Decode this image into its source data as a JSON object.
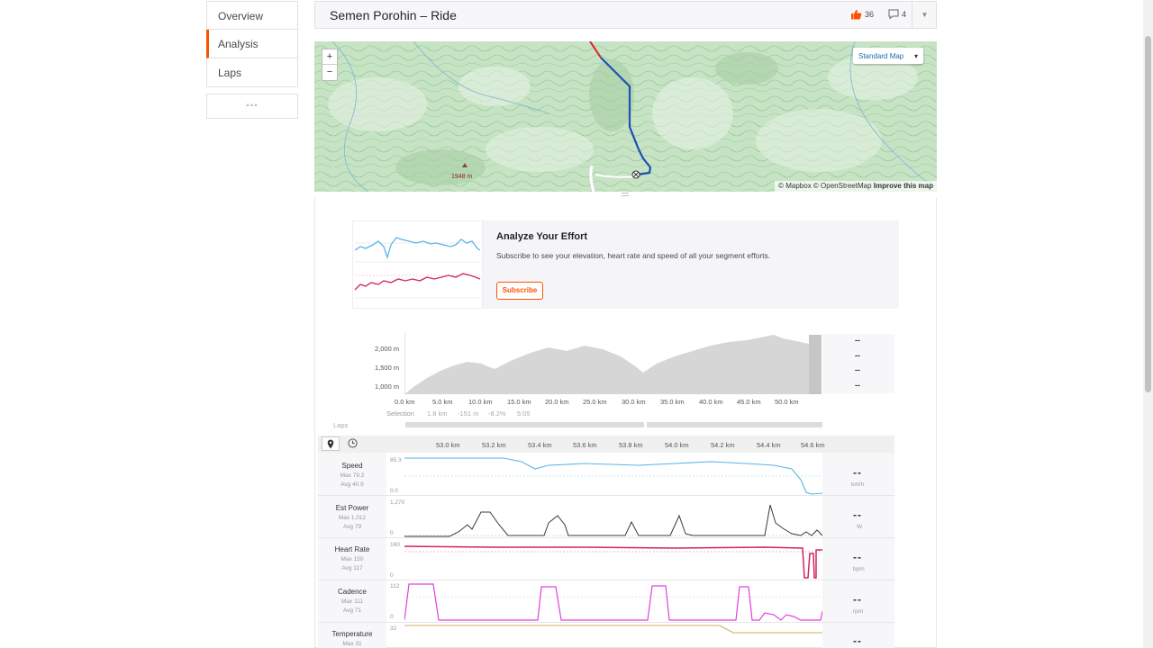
{
  "sidebar": {
    "items": [
      {
        "label": "Overview"
      },
      {
        "label": "Analysis"
      },
      {
        "label": "Laps"
      }
    ],
    "more_label": "◦◦◦"
  },
  "header": {
    "title": "Semen Porohin – Ride",
    "kudos_count": "36",
    "comment_count": "4"
  },
  "map": {
    "zoom_in": "+",
    "zoom_out": "−",
    "style_selector": "Standard Map",
    "attribution_1": "© Mapbox © OpenStreetMap ",
    "attribution_2": "Improve this map",
    "peak_label": "1948 m"
  },
  "upsell": {
    "title": "Analyze Your Effort",
    "text": "Subscribe to see your elevation, heart rate and speed of all your segment efforts.",
    "button": "Subscribe"
  },
  "elevation": {
    "y_ticks": [
      "2,000 m",
      "1,500 m",
      "1,000 m"
    ],
    "x_ticks": [
      "0.0 km",
      "5.0 km",
      "10.0 km",
      "15.0 km",
      "20.0 km",
      "25.0 km",
      "30.0 km",
      "35.0 km",
      "40.0 km",
      "45.0 km",
      "50.0 km"
    ],
    "selection_label": "Selection",
    "selection_values": [
      "1.8 km",
      "-151 m",
      "-8.2%",
      "5:05"
    ],
    "stats": [
      "--",
      "--",
      "--",
      "--"
    ],
    "laps_label": "Laps"
  },
  "streams": {
    "x_ticks": [
      "53.0 km",
      "53.2 km",
      "53.4 km",
      "53.6 km",
      "53.8 km",
      "54.0 km",
      "54.2 km",
      "54.4 km",
      "54.6 km"
    ],
    "rows": [
      {
        "name": "Speed",
        "max": "Max 79.2",
        "avg": "Avg 40.9",
        "ymax": "85.3",
        "ymin": "0.0",
        "value": "--",
        "unit": "km/h"
      },
      {
        "name": "Est Power",
        "max": "Max 1,012",
        "avg": "Avg 79",
        "ymax": "1,270",
        "ymin": "0",
        "value": "--",
        "unit": "W"
      },
      {
        "name": "Heart Rate",
        "max": "Max 150",
        "avg": "Avg 117",
        "ymax": "160",
        "ymin": "0",
        "value": "--",
        "unit": "bpm"
      },
      {
        "name": "Cadence",
        "max": "Max 111",
        "avg": "Avg 71",
        "ymax": "112",
        "ymin": "0",
        "value": "--",
        "unit": "rpm"
      },
      {
        "name": "Temperature",
        "max": "Max 31",
        "avg": "",
        "ymax": "32",
        "ymin": "",
        "value": "--",
        "unit": ""
      }
    ]
  },
  "colors": {
    "accent": "#fc5200",
    "speed": "#5ab4e5",
    "power": "#3a3a3a",
    "heart_rate": "#d0265c",
    "cadence": "#e040e0",
    "temperature": "#c8b060",
    "elevation": "#d6d6d6",
    "route": "#1f4fb5"
  }
}
